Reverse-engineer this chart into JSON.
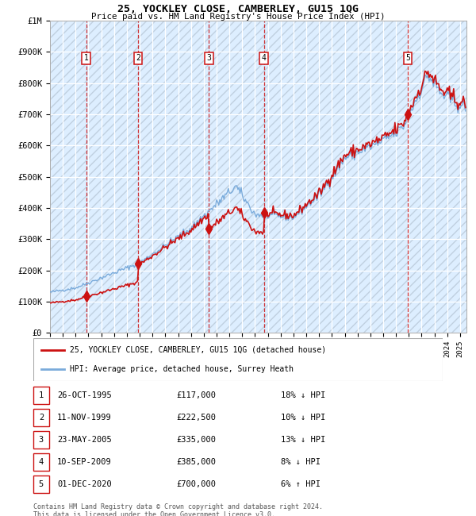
{
  "title": "25, YOCKLEY CLOSE, CAMBERLEY, GU15 1QG",
  "subtitle": "Price paid vs. HM Land Registry's House Price Index (HPI)",
  "ylim": [
    0,
    1000000
  ],
  "yticks": [
    0,
    100000,
    200000,
    300000,
    400000,
    500000,
    600000,
    700000,
    800000,
    900000,
    1000000
  ],
  "ytick_labels": [
    "£0",
    "£100K",
    "£200K",
    "£300K",
    "£400K",
    "£500K",
    "£600K",
    "£700K",
    "£800K",
    "£900K",
    "£1M"
  ],
  "xlim_start": 1993.0,
  "xlim_end": 2025.5,
  "hpi_color": "#7aabdb",
  "price_color": "#cc1111",
  "sale_dates": [
    1995.82,
    1999.87,
    2005.39,
    2009.7,
    2020.92
  ],
  "sale_prices": [
    117000,
    222500,
    335000,
    385000,
    700000
  ],
  "sale_labels": [
    "1",
    "2",
    "3",
    "4",
    "5"
  ],
  "legend_label_price": "25, YOCKLEY CLOSE, CAMBERLEY, GU15 1QG (detached house)",
  "legend_label_hpi": "HPI: Average price, detached house, Surrey Heath",
  "table_entries": [
    {
      "num": "1",
      "date": "26-OCT-1995",
      "price": "£117,000",
      "hpi": "18% ↓ HPI"
    },
    {
      "num": "2",
      "date": "11-NOV-1999",
      "price": "£222,500",
      "hpi": "10% ↓ HPI"
    },
    {
      "num": "3",
      "date": "23-MAY-2005",
      "price": "£335,000",
      "hpi": "13% ↓ HPI"
    },
    {
      "num": "4",
      "date": "10-SEP-2009",
      "price": "£385,000",
      "hpi": "8% ↓ HPI"
    },
    {
      "num": "5",
      "date": "01-DEC-2020",
      "price": "£700,000",
      "hpi": "6% ↑ HPI"
    }
  ],
  "footer": "Contains HM Land Registry data © Crown copyright and database right 2024.\nThis data is licensed under the Open Government Licence v3.0.",
  "background_color": "#ffffff",
  "plot_bg_color": "#ddeeff"
}
